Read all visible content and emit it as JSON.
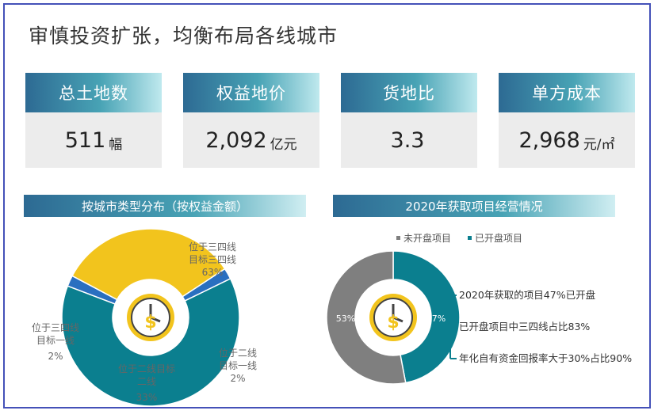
{
  "title": "审慎投资扩张，均衡布局各线城市",
  "cards": [
    {
      "label": "总土地数",
      "value": "511",
      "unit": "幅"
    },
    {
      "label": "权益地价",
      "value": "2,092",
      "unit": "亿元"
    },
    {
      "label": "货地比",
      "value": "3.3",
      "unit": ""
    },
    {
      "label": "单方成本",
      "value": "2,968",
      "unit": "元/㎡"
    }
  ],
  "left_section": {
    "header": "按城市类型分布（按权益金额）"
  },
  "right_section": {
    "header": "2020年获取项目经营情况",
    "legend": [
      "未开盘项目",
      "已开盘项目"
    ],
    "notes": [
      "2020年获取的项目47%已开盘",
      "已开盘项目中三四线占比83%",
      "年化自有资金回报率大于30%占比90%"
    ]
  },
  "chart_data": [
    {
      "type": "pie",
      "title": "按城市类型分布（按权益金额）",
      "labels": [
        "位于三四线目标三四线",
        "位于二线目标一线",
        "位于二线目标二线",
        "位于三四线目标一线"
      ],
      "display_labels": [
        [
          "位于三四线",
          "目标三四线",
          "63%"
        ],
        [
          "位于二线",
          "目标一线",
          "2%"
        ],
        [
          "位于二线目标",
          "二线",
          "33%"
        ],
        [
          "位于三四线",
          "目标一线",
          "2%"
        ]
      ],
      "values": [
        63,
        2,
        33,
        2
      ],
      "colors": [
        "#0b7f8f",
        "#2a6fc0",
        "#f2c41d",
        "#2a6fc0"
      ]
    },
    {
      "type": "pie",
      "title": "2020年获取项目经营情况",
      "labels": [
        "已开盘项目",
        "未开盘项目"
      ],
      "display_labels": [
        "47%",
        "53%"
      ],
      "values": [
        47,
        53
      ],
      "colors": [
        "#0b7f8f",
        "#7f7f7f"
      ]
    }
  ]
}
